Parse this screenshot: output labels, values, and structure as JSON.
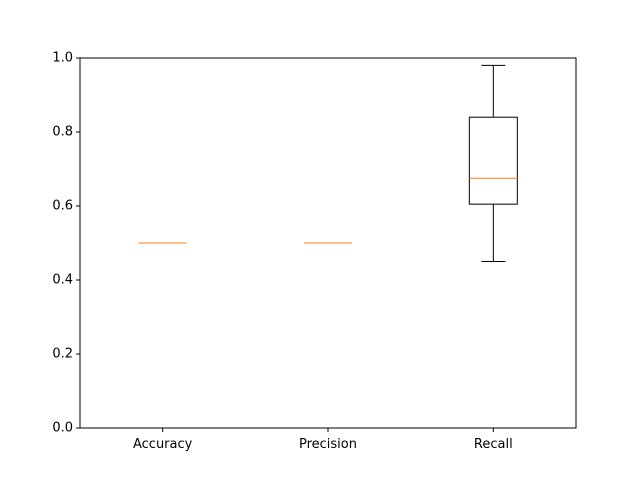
{
  "chart_data": {
    "type": "box",
    "title": "",
    "xlabel": "",
    "ylabel": "",
    "ylim": [
      0,
      1
    ],
    "yticks": [
      0.0,
      0.2,
      0.4,
      0.6,
      0.8,
      1.0
    ],
    "ytick_labels": [
      "0.0",
      "0.2",
      "0.4",
      "0.6",
      "0.8",
      "1.0"
    ],
    "categories": [
      "Accuracy",
      "Precision",
      "Recall"
    ],
    "boxes": [
      {
        "category": "Accuracy",
        "whisker_low": 0.5,
        "q1": 0.5,
        "median": 0.5,
        "q3": 0.5,
        "whisker_high": 0.5
      },
      {
        "category": "Precision",
        "whisker_low": 0.5,
        "q1": 0.5,
        "median": 0.5,
        "q3": 0.5,
        "whisker_high": 0.5
      },
      {
        "category": "Recall",
        "whisker_low": 0.45,
        "q1": 0.605,
        "median": 0.675,
        "q3": 0.84,
        "whisker_high": 0.98
      }
    ],
    "grid": false,
    "colors": {
      "box": "#000000",
      "median": "#ff7f0e",
      "background": "#ffffff"
    }
  }
}
